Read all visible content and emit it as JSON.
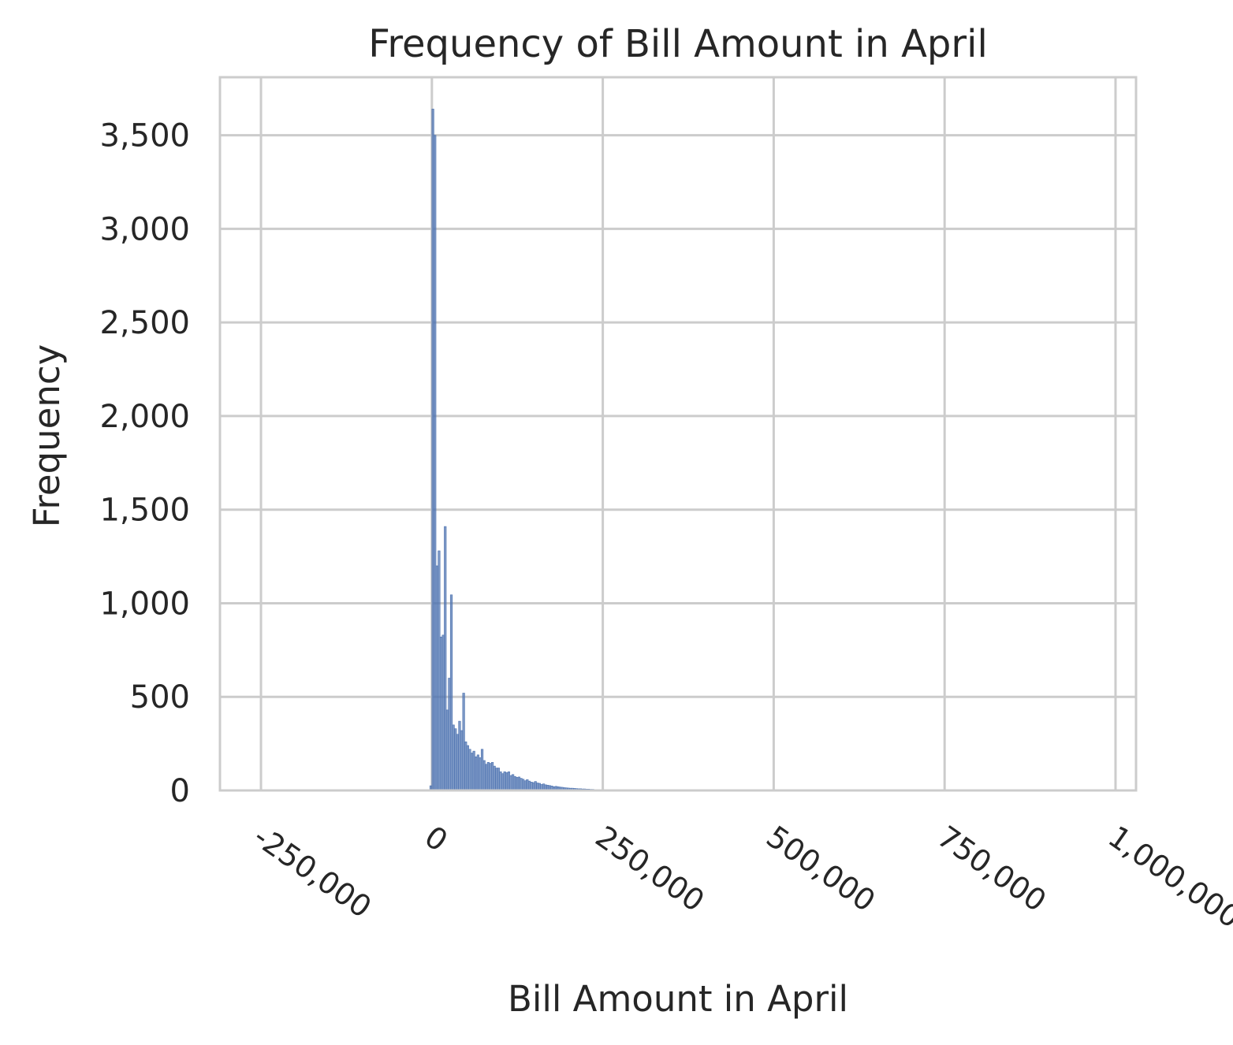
{
  "chart_data": {
    "type": "bar",
    "title": "Frequency of Bill Amount in April",
    "xlabel": "Bill Amount in April",
    "ylabel": "Frequency",
    "xlim": [
      -310000,
      1030000
    ],
    "ylim": [
      0,
      3810
    ],
    "xticks": [
      -250000,
      0,
      250000,
      500000,
      750000,
      1000000
    ],
    "xtick_labels": [
      "-250,000",
      "0",
      "250,000",
      "500,000",
      "750,000",
      "1,000,000"
    ],
    "yticks": [
      0,
      500,
      1000,
      1500,
      2000,
      2500,
      3000,
      3500
    ],
    "ytick_labels": [
      "0",
      "500",
      "1,000",
      "1,500",
      "2,000",
      "2,500",
      "3,000",
      "3,500"
    ],
    "grid": true,
    "color": "#4c72b0",
    "bin_width": 3000,
    "bin_start": -3000,
    "values": [
      25,
      3640,
      3500,
      1200,
      1280,
      820,
      830,
      1410,
      430,
      600,
      1045,
      350,
      330,
      300,
      370,
      320,
      520,
      260,
      240,
      220,
      200,
      210,
      180,
      190,
      175,
      220,
      160,
      140,
      150,
      145,
      150,
      130,
      120,
      120,
      100,
      90,
      100,
      95,
      100,
      80,
      85,
      75,
      70,
      72,
      65,
      60,
      52,
      58,
      50,
      45,
      42,
      48,
      40,
      38,
      32,
      35,
      30,
      28,
      26,
      24,
      20,
      22,
      20,
      18,
      17,
      15,
      14,
      13,
      12,
      12,
      11,
      10,
      9,
      9,
      8,
      8,
      7,
      7,
      6,
      6,
      5,
      5,
      5,
      4,
      4,
      4,
      3,
      3,
      3,
      2
    ]
  }
}
